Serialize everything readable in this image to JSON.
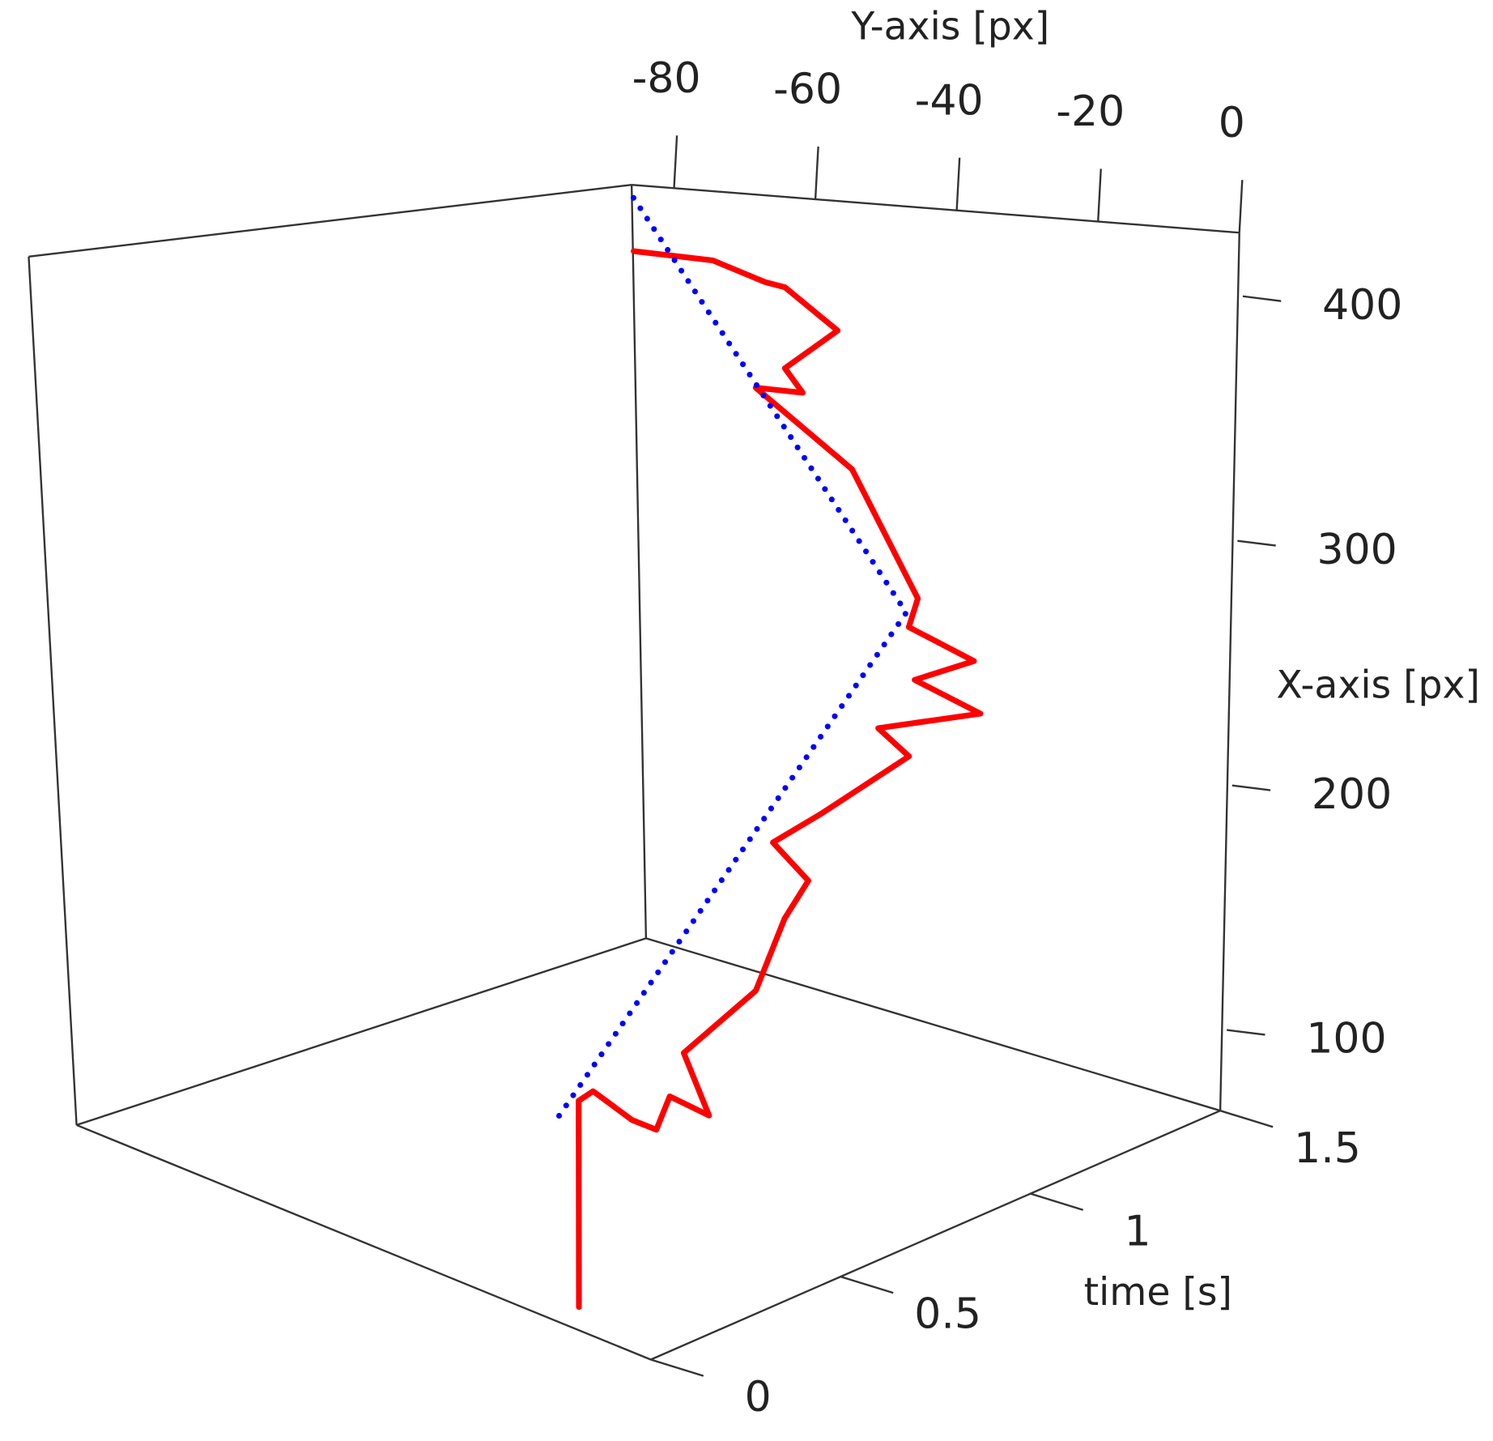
{
  "chart_data": {
    "type": "line3d",
    "x_label": "X-axis [px]",
    "y_label": "Y-axis [px]",
    "t_label": "time [s]",
    "xlim": [
      67,
      426
    ],
    "xticks": [
      100,
      200,
      300,
      400
    ],
    "ylim": [
      -86,
      0
    ],
    "yticks": [
      -80,
      -60,
      -40,
      -20,
      0
    ],
    "tlim": [
      0,
      1.5
    ],
    "tticks": [
      0,
      0.5,
      1,
      1.5
    ],
    "series": [
      {
        "color": "#ff0000",
        "style": "solid",
        "t": [
          0,
          0.015,
          0.06,
          0.12,
          0.165,
          0.21,
          0.255,
          0.3,
          0.39,
          0.45,
          0.495,
          0.54,
          0.6,
          0.75,
          0.795,
          0.9,
          0.93,
          0.975,
          1.005,
          1.035,
          1.125,
          1.2,
          1.23,
          1.275,
          1.32,
          1.38,
          1.41,
          1.455,
          1.5
        ],
        "x": [
          75.6,
          150.6,
          151.4,
          139.5,
          134.3,
          143.8,
          137,
          152.7,
          176.1,
          200.9,
          213.8,
          220.6,
          231.3,
          249,
          253.3,
          259.4,
          264.5,
          273.4,
          279.2,
          289.2,
          331.2,
          354.9,
          353.8,
          360.7,
          377.5,
          390.8,
          390.5,
          395.8,
          394.4
        ],
        "y": [
          -10.8,
          -12,
          -12.4,
          -10,
          -8.9,
          -9.5,
          -6.2,
          -12.5,
          -7.1,
          -6.4,
          -5.5,
          -13.1,
          -9.5,
          -5.2,
          -12.1,
          -3.2,
          -14.3,
          -8.3,
          -19.3,
          -19.7,
          -34.1,
          -51.9,
          -46.9,
          -51.9,
          -46.9,
          -57.7,
          -62.1,
          -72.1,
          -85.9
        ]
      },
      {
        "color": "#0000ff",
        "style": "dotted",
        "t": [
          0,
          0.9,
          1.5
        ],
        "x": [
          144,
          293,
          421
        ],
        "y": [
          -14,
          -14,
          -86
        ]
      }
    ]
  }
}
